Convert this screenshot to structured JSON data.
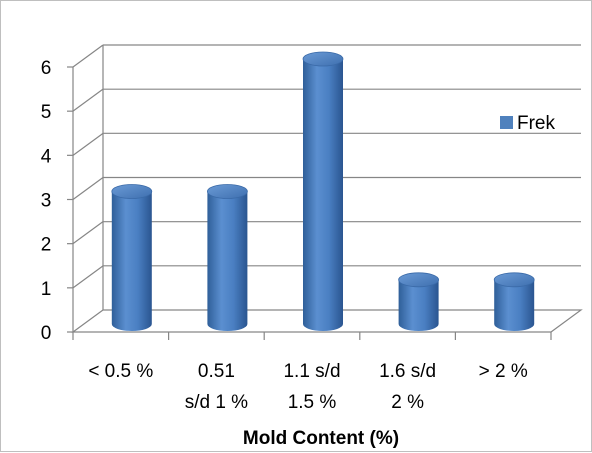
{
  "chart_data": {
    "type": "bar",
    "style": "3d-cylinder",
    "categories": [
      [
        "< 0.5 %"
      ],
      [
        "0.51",
        "s/d 1 %"
      ],
      [
        "1.1 s/d",
        "1.5 %"
      ],
      [
        "1.6 s/d",
        "2 %"
      ],
      [
        "> 2 %"
      ]
    ],
    "series": [
      {
        "name": "Frek",
        "values": [
          3,
          3,
          6,
          1,
          1
        ],
        "color": "#4f81bd"
      }
    ],
    "xlabel": "Mold Content (%)",
    "ylabel": "",
    "ylim": [
      0,
      6
    ],
    "yticks": [
      0,
      1,
      2,
      3,
      4,
      5,
      6
    ],
    "grid": true,
    "legend": "right"
  }
}
